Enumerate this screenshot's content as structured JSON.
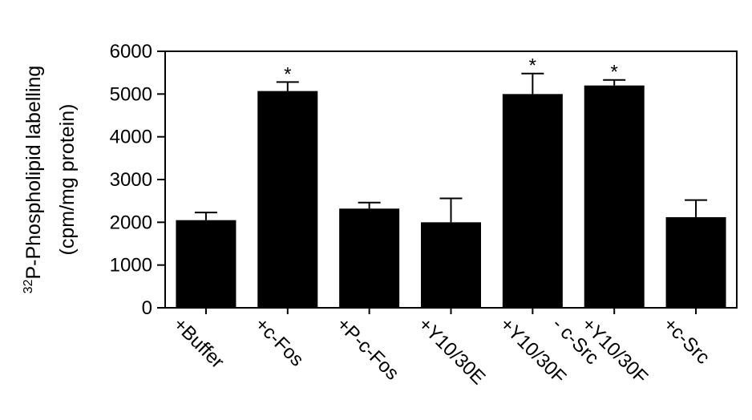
{
  "chart_data": {
    "type": "bar",
    "categories": [
      "+Buffer",
      "+c-Fos",
      "+P-c-Fos",
      "+Y10/30E",
      "+Y10/30F",
      "+Y10/30F - c-Src",
      "+c-Src"
    ],
    "category_lines": [
      [
        "+Buffer"
      ],
      [
        "+c-Fos"
      ],
      [
        "+P-c-Fos"
      ],
      [
        "+Y10/30E"
      ],
      [
        "+Y10/30F"
      ],
      [
        "+Y10/30F",
        "- c-Src"
      ],
      [
        "+c-Src"
      ]
    ],
    "values": [
      2050,
      5070,
      2320,
      2000,
      5000,
      5200,
      2120
    ],
    "error_upper": [
      2230,
      5280,
      2460,
      2560,
      5480,
      5330,
      2520
    ],
    "significant": [
      "",
      "*",
      "",
      "",
      "*",
      "*",
      ""
    ],
    "ylabel_sup": "32",
    "ylabel_line1": "P-Phospholipid labelling",
    "ylabel_line2": "(cpm/mg protein)",
    "ylim": [
      0,
      6000
    ],
    "yticks": [
      0,
      1000,
      2000,
      3000,
      4000,
      5000,
      6000
    ],
    "bar_color": "#000000",
    "grid": false,
    "legend": "none"
  }
}
